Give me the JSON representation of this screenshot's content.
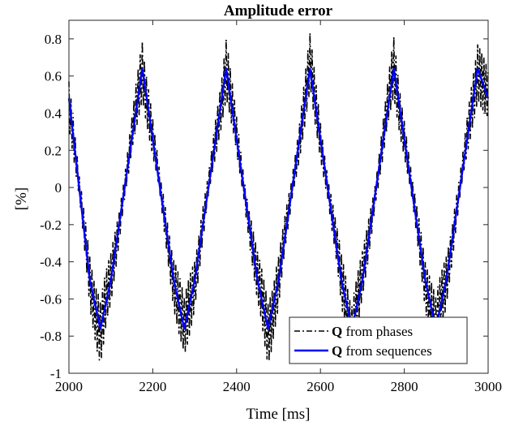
{
  "chart_data": {
    "type": "line",
    "title": "Amplitude error",
    "xlabel": "Time [ms]",
    "ylabel": "[%]",
    "xlim": [
      2000,
      3000
    ],
    "ylim": [
      -1,
      0.9
    ],
    "xticks": [
      2000,
      2200,
      2400,
      2600,
      2800,
      3000
    ],
    "yticks": [
      -1,
      -0.8,
      -0.6,
      -0.4,
      -0.2,
      0,
      0.2,
      0.4,
      0.6,
      0.8
    ],
    "xtick_labels": [
      "2000",
      "2200",
      "2400",
      "2600",
      "2800",
      "3000"
    ],
    "ytick_labels": [
      "-1",
      "-0.8",
      "-0.6",
      "-0.4",
      "-0.2",
      "0",
      "0.2",
      "0.4",
      "0.6",
      "0.8"
    ],
    "grid": false,
    "legend_position": "bottom-right",
    "series": [
      {
        "name": "Q from phases",
        "legend_bold": "Q",
        "legend_rest": " from phases",
        "color": "#000000",
        "style": "dash-dot",
        "x": [
          2000,
          2050,
          2075,
          2100,
          2175,
          2250,
          2275,
          2300,
          2375,
          2450,
          2475,
          2500,
          2575,
          2650,
          2675,
          2700,
          2775,
          2850,
          2875,
          2900,
          2975,
          3000
        ],
        "y": [
          0.48,
          -0.5,
          -0.78,
          -0.5,
          0.65,
          -0.5,
          -0.78,
          -0.5,
          0.65,
          -0.5,
          -0.78,
          -0.5,
          0.65,
          -0.5,
          -0.78,
          -0.5,
          0.65,
          -0.5,
          -0.78,
          -0.5,
          0.65,
          0.48
        ],
        "noise_amplitude": 0.19
      },
      {
        "name": "Q from sequences",
        "legend_bold": "Q",
        "legend_rest": " from sequences",
        "color": "#0000ff",
        "style": "solid",
        "x": [
          2000,
          2050,
          2075,
          2100,
          2175,
          2250,
          2275,
          2300,
          2375,
          2450,
          2475,
          2500,
          2575,
          2650,
          2675,
          2700,
          2775,
          2850,
          2875,
          2900,
          2975,
          3000
        ],
        "y": [
          0.48,
          -0.5,
          -0.76,
          -0.5,
          0.64,
          -0.5,
          -0.76,
          -0.5,
          0.64,
          -0.5,
          -0.76,
          -0.5,
          0.64,
          -0.5,
          -0.76,
          -0.5,
          0.64,
          -0.5,
          -0.76,
          -0.5,
          0.64,
          0.48
        ]
      }
    ]
  }
}
